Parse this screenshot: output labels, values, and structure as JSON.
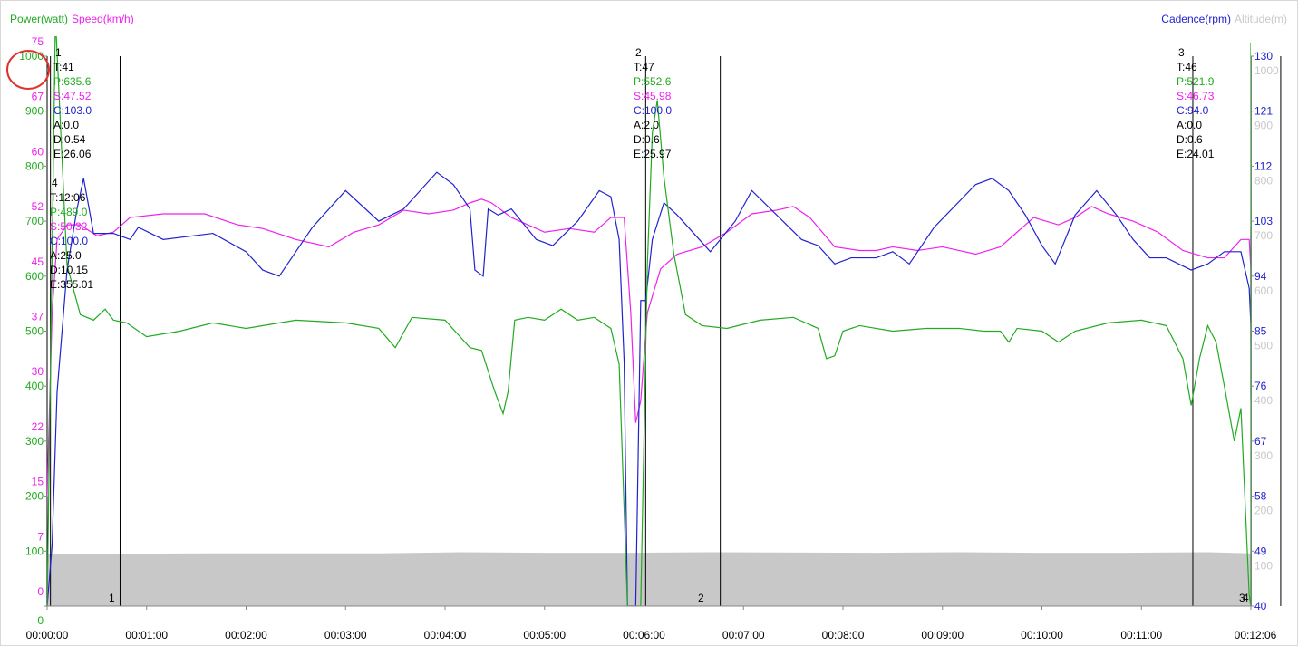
{
  "legend": {
    "left": [
      {
        "label": "Power(watt)",
        "color": "#22aa22"
      },
      {
        "label": "Speed(km/h)",
        "color": "#ee22ee"
      }
    ],
    "right": [
      {
        "label": "Cadence(rpm)",
        "color": "#2222cc"
      },
      {
        "label": "Altitude(m)",
        "color": "#c8c8c8"
      }
    ]
  },
  "colors": {
    "power": "#22aa22",
    "speed": "#ee22ee",
    "cadence": "#2222cc",
    "altitude": "#c8c8c8",
    "marker": "#000000",
    "annotation_circle": "#e03030"
  },
  "annotation": {
    "shape": "red circle",
    "around": "power axis label 1000"
  },
  "chart_data": {
    "type": "line",
    "x_unit": "time",
    "xlim": [
      "00:00:00",
      "00:12:06"
    ],
    "x_ticks": [
      "00:00:00",
      "00:01:00",
      "00:02:00",
      "00:03:00",
      "00:04:00",
      "00:05:00",
      "00:06:00",
      "00:07:00",
      "00:08:00",
      "00:09:00",
      "00:10:00",
      "00:11:00",
      "00:12:06"
    ],
    "axes": {
      "power": {
        "label": "Power(watt)",
        "side": "left",
        "range": [
          0,
          1000
        ],
        "ticks": [
          "0",
          "100",
          "200",
          "300",
          "400",
          "500",
          "600",
          "700",
          "800",
          "900",
          "1000"
        ]
      },
      "speed": {
        "label": "Speed(km/h)",
        "side": "left",
        "range": [
          0,
          75
        ],
        "ticks": [
          "0",
          "7",
          "15",
          "22",
          "30",
          "37",
          "45",
          "52",
          "60",
          "67",
          "75"
        ]
      },
      "cadence": {
        "label": "Cadence(rpm)",
        "side": "right",
        "range": [
          40,
          130
        ],
        "ticks": [
          "40",
          "49",
          "58",
          "67",
          "76",
          "85",
          "94",
          "103",
          "112",
          "121",
          "130"
        ]
      },
      "altitude": {
        "label": "Altitude(m)",
        "side": "right",
        "range": [
          0,
          1000
        ],
        "ticks": [
          "100",
          "200",
          "300",
          "400",
          "500",
          "600",
          "700",
          "800",
          "900",
          "1000"
        ]
      }
    },
    "series": [
      {
        "name": "Power(watt)",
        "axis": "power",
        "points": [
          [
            0,
            0
          ],
          [
            5,
            1070
          ],
          [
            12,
            620
          ],
          [
            20,
            530
          ],
          [
            28,
            520
          ],
          [
            35,
            540
          ],
          [
            40,
            520
          ],
          [
            48,
            515
          ],
          [
            60,
            490
          ],
          [
            80,
            500
          ],
          [
            100,
            515
          ],
          [
            120,
            505
          ],
          [
            150,
            520
          ],
          [
            180,
            515
          ],
          [
            200,
            505
          ],
          [
            210,
            470
          ],
          [
            220,
            525
          ],
          [
            240,
            520
          ],
          [
            255,
            470
          ],
          [
            262,
            465
          ],
          [
            270,
            390
          ],
          [
            275,
            350
          ],
          [
            278,
            390
          ],
          [
            282,
            520
          ],
          [
            290,
            525
          ],
          [
            300,
            520
          ],
          [
            310,
            540
          ],
          [
            320,
            520
          ],
          [
            330,
            525
          ],
          [
            340,
            505
          ],
          [
            345,
            440
          ],
          [
            350,
            0
          ],
          [
            355,
            0
          ],
          [
            358,
            0
          ],
          [
            362,
            620
          ],
          [
            365,
            860
          ],
          [
            368,
            920
          ],
          [
            372,
            780
          ],
          [
            378,
            640
          ],
          [
            385,
            530
          ],
          [
            395,
            510
          ],
          [
            410,
            505
          ],
          [
            430,
            520
          ],
          [
            450,
            525
          ],
          [
            465,
            505
          ],
          [
            470,
            450
          ],
          [
            475,
            455
          ],
          [
            480,
            500
          ],
          [
            490,
            510
          ],
          [
            510,
            500
          ],
          [
            530,
            505
          ],
          [
            550,
            505
          ],
          [
            565,
            500
          ],
          [
            575,
            500
          ],
          [
            580,
            480
          ],
          [
            585,
            505
          ],
          [
            600,
            500
          ],
          [
            610,
            480
          ],
          [
            620,
            500
          ],
          [
            640,
            515
          ],
          [
            660,
            520
          ],
          [
            675,
            510
          ],
          [
            685,
            450
          ],
          [
            690,
            365
          ],
          [
            695,
            450
          ],
          [
            700,
            510
          ],
          [
            705,
            480
          ],
          [
            710,
            400
          ],
          [
            716,
            300
          ],
          [
            720,
            360
          ],
          [
            725,
            20
          ],
          [
            728,
            0
          ],
          [
            733,
            700
          ],
          [
            736,
            1025
          ],
          [
            740,
            870
          ],
          [
            744,
            780
          ],
          [
            746,
            530
          ]
        ]
      },
      {
        "name": "Speed(km/h)",
        "axis": "speed",
        "points": [
          [
            0,
            15
          ],
          [
            3,
            40
          ],
          [
            6,
            50
          ],
          [
            12,
            52
          ],
          [
            20,
            52
          ],
          [
            30,
            50.5
          ],
          [
            40,
            51
          ],
          [
            50,
            53
          ],
          [
            70,
            53.5
          ],
          [
            95,
            53.5
          ],
          [
            115,
            52
          ],
          [
            130,
            51.5
          ],
          [
            150,
            50
          ],
          [
            170,
            49
          ],
          [
            185,
            51
          ],
          [
            200,
            52
          ],
          [
            215,
            54
          ],
          [
            230,
            53.5
          ],
          [
            245,
            54
          ],
          [
            255,
            55
          ],
          [
            262,
            55.5
          ],
          [
            268,
            55
          ],
          [
            280,
            53
          ],
          [
            300,
            51
          ],
          [
            315,
            51.5
          ],
          [
            330,
            51
          ],
          [
            340,
            53
          ],
          [
            348,
            53
          ],
          [
            352,
            40
          ],
          [
            355,
            25
          ],
          [
            358,
            28
          ],
          [
            362,
            40
          ],
          [
            370,
            46
          ],
          [
            380,
            48
          ],
          [
            395,
            49
          ],
          [
            410,
            51
          ],
          [
            425,
            53.5
          ],
          [
            440,
            54
          ],
          [
            450,
            54.5
          ],
          [
            460,
            53
          ],
          [
            475,
            49
          ],
          [
            490,
            48.5
          ],
          [
            500,
            48.5
          ],
          [
            510,
            49
          ],
          [
            525,
            48.5
          ],
          [
            540,
            49
          ],
          [
            560,
            48
          ],
          [
            575,
            49
          ],
          [
            585,
            51
          ],
          [
            595,
            53
          ],
          [
            610,
            52
          ],
          [
            620,
            53
          ],
          [
            630,
            54.5
          ],
          [
            640,
            53.5
          ],
          [
            655,
            52.5
          ],
          [
            670,
            51
          ],
          [
            685,
            48.5
          ],
          [
            700,
            47.5
          ],
          [
            710,
            47.5
          ],
          [
            720,
            50
          ],
          [
            725,
            50
          ],
          [
            730,
            46
          ],
          [
            735,
            36
          ],
          [
            738,
            38
          ],
          [
            742,
            48
          ],
          [
            746,
            50.5
          ]
        ]
      },
      {
        "name": "Cadence(rpm)",
        "axis": "cadence",
        "points": [
          [
            0,
            40
          ],
          [
            3,
            50
          ],
          [
            6,
            75
          ],
          [
            12,
            95
          ],
          [
            18,
            105
          ],
          [
            22,
            110
          ],
          [
            28,
            101
          ],
          [
            40,
            101
          ],
          [
            50,
            100
          ],
          [
            55,
            102
          ],
          [
            70,
            100
          ],
          [
            100,
            101
          ],
          [
            120,
            98
          ],
          [
            130,
            95
          ],
          [
            140,
            94
          ],
          [
            150,
            98
          ],
          [
            160,
            102
          ],
          [
            180,
            108
          ],
          [
            200,
            103
          ],
          [
            215,
            105
          ],
          [
            235,
            111
          ],
          [
            245,
            109
          ],
          [
            255,
            105
          ],
          [
            258,
            95
          ],
          [
            263,
            94
          ],
          [
            266,
            105
          ],
          [
            272,
            104
          ],
          [
            280,
            105
          ],
          [
            295,
            100
          ],
          [
            305,
            99
          ],
          [
            320,
            103
          ],
          [
            333,
            108
          ],
          [
            340,
            107
          ],
          [
            345,
            100
          ],
          [
            348,
            80
          ],
          [
            350,
            40
          ],
          [
            355,
            40
          ],
          [
            358,
            90
          ],
          [
            361,
            90
          ],
          [
            365,
            100
          ],
          [
            372,
            106
          ],
          [
            380,
            104
          ],
          [
            390,
            101
          ],
          [
            400,
            98
          ],
          [
            415,
            103
          ],
          [
            425,
            108
          ],
          [
            440,
            104
          ],
          [
            455,
            100
          ],
          [
            465,
            99
          ],
          [
            475,
            96
          ],
          [
            485,
            97
          ],
          [
            500,
            97
          ],
          [
            510,
            98
          ],
          [
            520,
            96
          ],
          [
            535,
            102
          ],
          [
            560,
            109
          ],
          [
            570,
            110
          ],
          [
            580,
            108
          ],
          [
            590,
            104
          ],
          [
            600,
            99
          ],
          [
            608,
            96
          ],
          [
            620,
            104
          ],
          [
            633,
            108
          ],
          [
            645,
            104
          ],
          [
            655,
            100
          ],
          [
            665,
            97
          ],
          [
            675,
            97
          ],
          [
            690,
            95
          ],
          [
            700,
            96
          ],
          [
            710,
            98
          ],
          [
            720,
            98
          ],
          [
            725,
            92
          ],
          [
            730,
            86
          ],
          [
            733,
            80
          ],
          [
            736,
            74
          ],
          [
            738,
            90
          ],
          [
            742,
            102
          ],
          [
            745,
            100
          ],
          [
            746,
            82
          ]
        ]
      },
      {
        "name": "Altitude(m)",
        "axis": "altitude",
        "points": [
          [
            0,
            95
          ],
          [
            100,
            96
          ],
          [
            200,
            96
          ],
          [
            250,
            98
          ],
          [
            300,
            97
          ],
          [
            350,
            97
          ],
          [
            400,
            98
          ],
          [
            500,
            97
          ],
          [
            550,
            98
          ],
          [
            600,
            97
          ],
          [
            650,
            97
          ],
          [
            700,
            98
          ],
          [
            746,
            96
          ]
        ]
      }
    ],
    "laps": [
      {
        "number": "1",
        "t_start": 2,
        "t_end": 44,
        "stats": {
          "T": "T:41",
          "P": "P:635.6",
          "S": "S:47.52",
          "C": "C:103.0",
          "A": "A:0.0",
          "D": "D:0.54",
          "E": "E:26.06"
        }
      },
      {
        "number": "2",
        "t_start": 361,
        "t_end": 406,
        "stats": {
          "T": "T:47",
          "P": "P:552.6",
          "S": "S:45.98",
          "C": "C:100.0",
          "A": "A:2.0",
          "D": "D:0.6",
          "E": "E:25.97"
        }
      },
      {
        "number": "3",
        "t_start": 691,
        "t_end": 746,
        "stats": {
          "T": "T:46",
          "P": "P:521.9",
          "S": "S:46.73",
          "C": "C:94.0",
          "A": "A:0.0",
          "D": "D:0.6",
          "E": "E:24.01"
        }
      },
      {
        "number": "4",
        "t_start": 0,
        "t_end": 746,
        "stats": {
          "T": "T:12:06",
          "P": "P:489.0",
          "S": "S:50.32",
          "C": "C:100.0",
          "A": "A:25.0",
          "D": "D:10.15",
          "E": "E:355.01"
        }
      }
    ],
    "bottom_lap_labels": [
      {
        "text": "1",
        "t": 44
      },
      {
        "text": "2",
        "t": 406
      },
      {
        "text": "3",
        "t": 744
      },
      {
        "text": "4",
        "t": 746
      }
    ],
    "grid": false
  }
}
